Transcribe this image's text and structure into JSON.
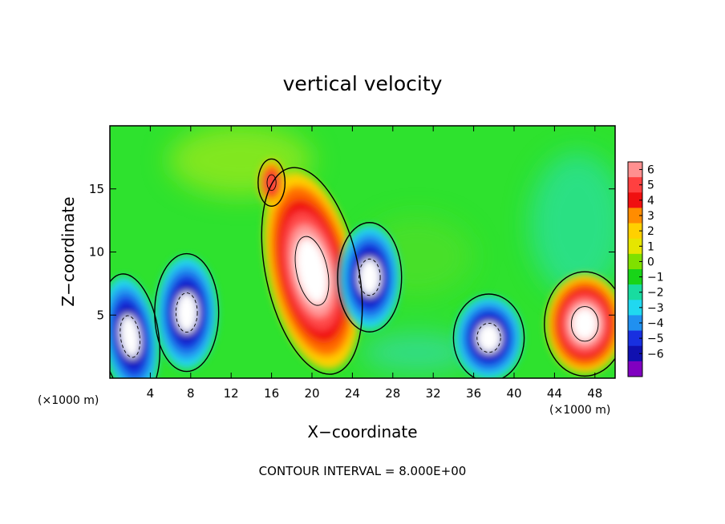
{
  "chart_data": {
    "type": "heatmap",
    "title": "vertical velocity",
    "xlabel": "X−coordinate",
    "ylabel": "Z−coordinate",
    "x_unit_label_left": "(×1000 m)",
    "x_unit_label_right": "(×1000 m)",
    "xlim": [
      0,
      50
    ],
    "ylim": [
      0,
      20
    ],
    "x_ticks": [
      4,
      8,
      12,
      16,
      20,
      24,
      28,
      32,
      36,
      40,
      44,
      48
    ],
    "y_ticks": [
      5,
      10,
      15
    ],
    "colorbar": {
      "levels": [
        6,
        5,
        4,
        3,
        2,
        1,
        0,
        -1,
        -2,
        -3,
        -4,
        -5,
        -6
      ],
      "tick_labels": [
        "6",
        "5",
        "4",
        "3",
        "2",
        "1",
        "0",
        "−1",
        "−2",
        "−3",
        "−4",
        "−5",
        "−6"
      ],
      "colors": [
        "#ff9090",
        "#ff4040",
        "#f01010",
        "#ff8c00",
        "#ffd000",
        "#e6e600",
        "#7fe000",
        "#18d418",
        "#18dca0",
        "#20d8f0",
        "#2090f0",
        "#1830e0",
        "#1010b0",
        "#8000c0"
      ]
    },
    "contour_note": "CONTOUR INTERVAL = 8.000E+00",
    "features": [
      {
        "x": 20,
        "z": 8.5,
        "value": 9,
        "kind": "updraft"
      },
      {
        "x": 16,
        "z": 15.5,
        "value": 4,
        "kind": "updraft"
      },
      {
        "x": 47,
        "z": 4.3,
        "value": 7,
        "kind": "updraft"
      },
      {
        "x": 2,
        "z": 3.3,
        "value": -7,
        "kind": "downdraft"
      },
      {
        "x": 7.6,
        "z": 5.2,
        "value": -7,
        "kind": "downdraft"
      },
      {
        "x": 25.7,
        "z": 8.0,
        "value": -6.5,
        "kind": "downdraft"
      },
      {
        "x": 37.5,
        "z": 3.2,
        "value": -6.5,
        "kind": "downdraft"
      }
    ]
  }
}
